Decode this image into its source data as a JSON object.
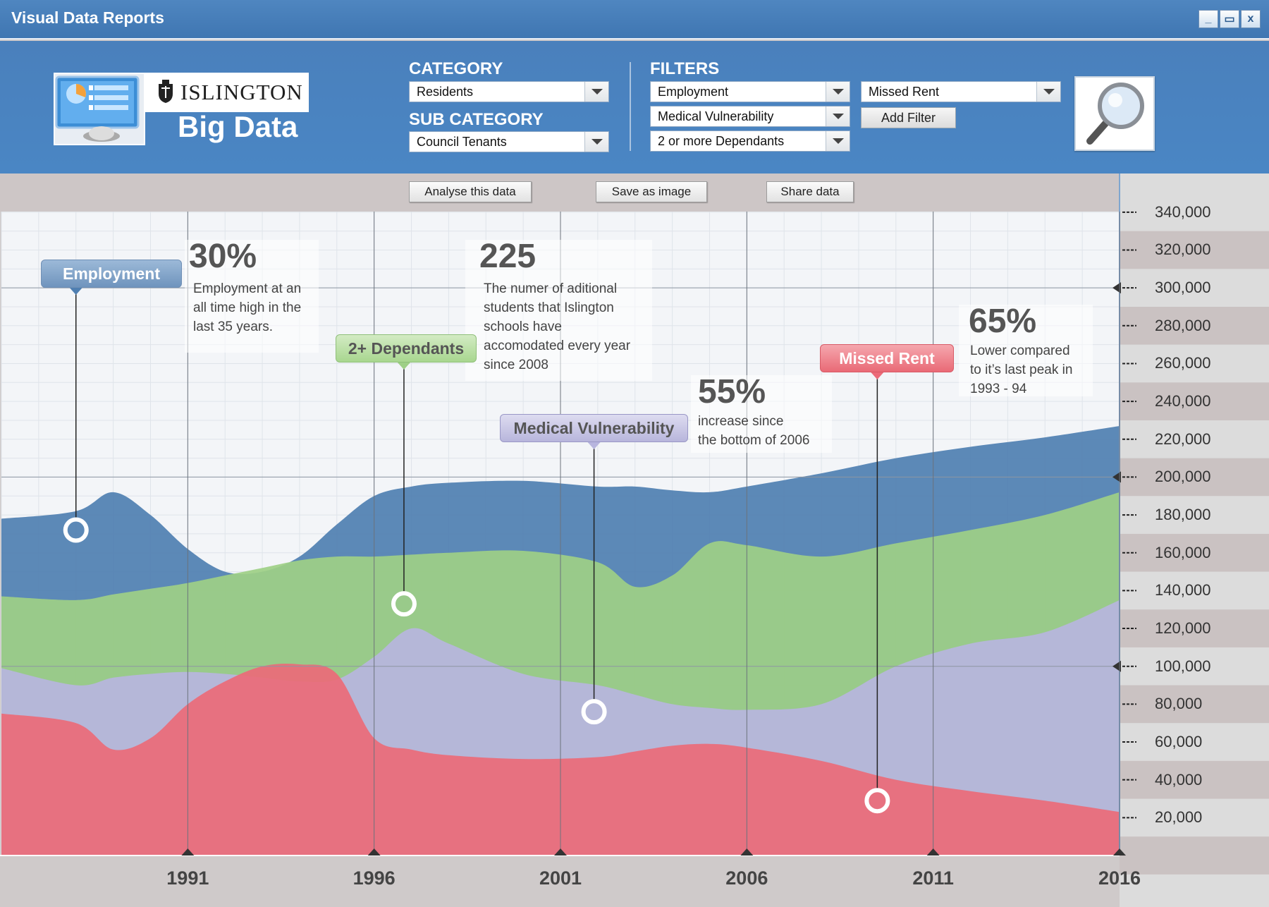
{
  "window": {
    "title": "Visual Data Reports",
    "min": "_",
    "restore": "▭",
    "close": "x"
  },
  "brand": {
    "org": "ISLINGTON",
    "product": "Big Data"
  },
  "category": {
    "label": "CATEGORY",
    "value": "Residents"
  },
  "sub_category": {
    "label": "SUB CATEGORY",
    "value": "Council Tenants"
  },
  "filters": {
    "label": "FILTERS",
    "items": [
      "Employment",
      "Medical Vulnerability",
      "2 or more Dependants",
      "Missed Rent"
    ],
    "add_label": "Add Filter"
  },
  "toolbar": {
    "analyse": "Analyse this data",
    "save": "Save as image",
    "share": "Share data"
  },
  "colors": {
    "employment": "#4f7fb1",
    "dependants": "#9ecf86",
    "medical": "#b7b5de",
    "missed_rent": "#ec6a78",
    "header": "#4a83c2"
  },
  "tags": {
    "employment": "Employment",
    "dependants": "2+ Dependants",
    "medical": "Medical Vulnerability",
    "missed_rent": "Missed Rent"
  },
  "callouts": [
    {
      "big": "30%",
      "lines": [
        "Employment at an",
        "all time high in the",
        "last 35 years."
      ]
    },
    {
      "big": "225",
      "lines": [
        "The numer of aditional",
        "students that Islington",
        "schools have",
        "accomodated every year",
        "since 2008"
      ]
    },
    {
      "big": "55%",
      "lines": [
        "increase since",
        "the bottom of 2006"
      ]
    },
    {
      "big": "65%",
      "lines": [
        "Lower compared",
        "to it’s last peak in",
        "1993 - 94"
      ]
    }
  ],
  "chart_data": {
    "type": "area",
    "x_ticks": [
      "1991",
      "1996",
      "2001",
      "2006",
      "2011",
      "2016"
    ],
    "y_ticks": [
      "340,000",
      "320,000",
      "300,000",
      "280,000",
      "260,000",
      "240,000",
      "220,000",
      "200,000",
      "180,000",
      "160,000",
      "140,000",
      "120,000",
      "100,000",
      "80,000",
      "60,000",
      "40,000",
      "20,000"
    ],
    "ylim": [
      0,
      350000
    ],
    "x": [
      1986,
      1988,
      1989,
      1990,
      1991,
      1992,
      1993,
      1994,
      1995,
      1996,
      1997,
      1998,
      2000,
      2002,
      2003,
      2004,
      2005,
      2006,
      2008,
      2010,
      2012,
      2014,
      2016
    ],
    "series": [
      {
        "key": "employment",
        "name": "Employment",
        "values": [
          178000,
          182000,
          192000,
          180000,
          162000,
          150000,
          150000,
          158000,
          175000,
          190000,
          195000,
          197000,
          198000,
          195000,
          195000,
          193000,
          192000,
          195000,
          202000,
          210000,
          216000,
          221000,
          227000
        ]
      },
      {
        "key": "dependants",
        "name": "2+ Dependants",
        "values": [
          137000,
          135000,
          138000,
          141000,
          144000,
          148000,
          152000,
          156000,
          158000,
          158000,
          159000,
          160000,
          161000,
          155000,
          142000,
          148000,
          165000,
          164000,
          158000,
          165000,
          172000,
          180000,
          192000
        ]
      },
      {
        "key": "medical",
        "name": "Medical Vulnerability",
        "values": [
          99000,
          90000,
          94000,
          96000,
          97000,
          96000,
          94000,
          92000,
          93000,
          105000,
          120000,
          112000,
          96000,
          90000,
          85000,
          80000,
          78000,
          77000,
          80000,
          100000,
          112000,
          118000,
          135000
        ]
      },
      {
        "key": "missed_rent",
        "name": "Missed Rent",
        "values": [
          75000,
          70000,
          56000,
          62000,
          80000,
          92000,
          100000,
          101000,
          96000,
          62000,
          56000,
          53000,
          51000,
          52000,
          55000,
          58000,
          59000,
          57000,
          50000,
          40000,
          34000,
          29000,
          23000
        ]
      }
    ],
    "markers": [
      {
        "key": "employment",
        "x": 1988.0,
        "y": 172000
      },
      {
        "key": "dependants",
        "x": 1996.8,
        "y": 133000
      },
      {
        "key": "medical",
        "x": 2001.9,
        "y": 76000
      },
      {
        "key": "missed_rent",
        "x": 2009.5,
        "y": 29000
      }
    ]
  }
}
